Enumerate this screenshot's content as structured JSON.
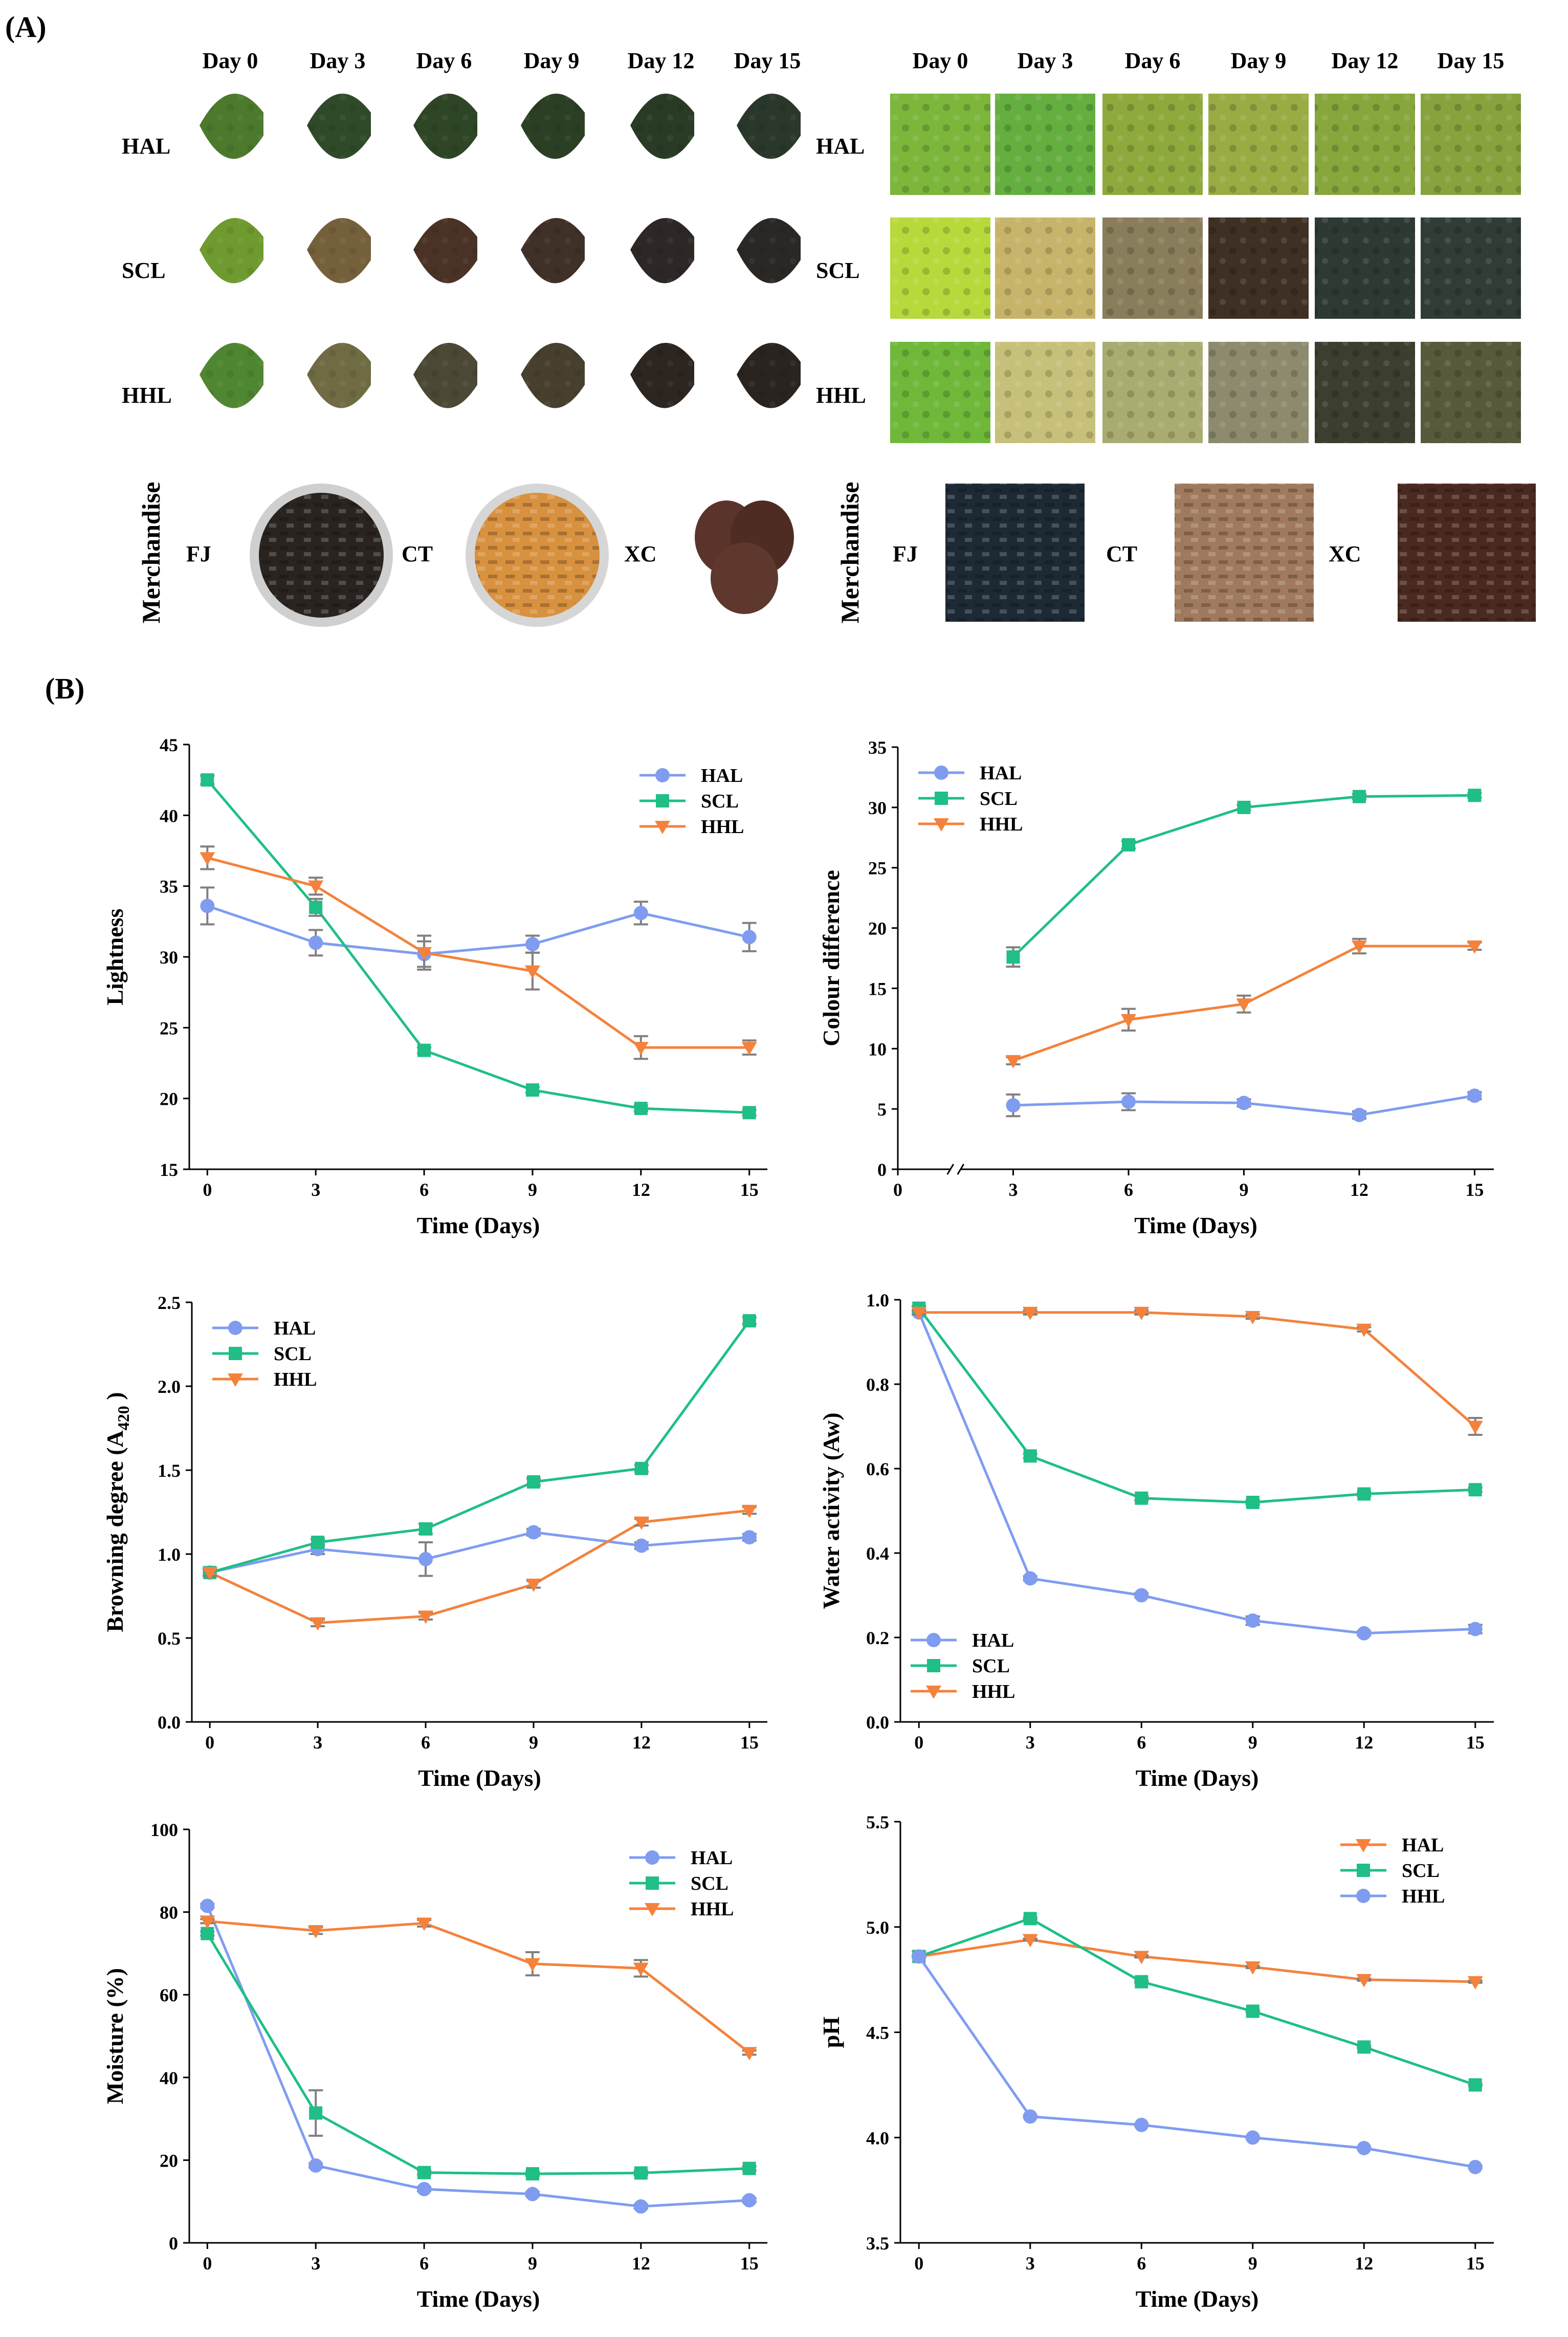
{
  "panel_a": {
    "label": "(A)",
    "days": [
      "Day 0",
      "Day 3",
      "Day 6",
      "Day 9",
      "Day 12",
      "Day 15"
    ],
    "rows": [
      "HAL",
      "SCL",
      "HHL"
    ],
    "merch_title": "Merchandise",
    "merch": [
      "FJ",
      "CT",
      "XC"
    ],
    "colors": {
      "HAL": [
        "#4b7a2c",
        "#2f4a29",
        "#2e4526",
        "#2b3f25",
        "#2a3b25",
        "#29382b"
      ],
      "SCL": [
        "#6f9a2f",
        "#75603c",
        "#4a3326",
        "#3f3028",
        "#2d2826",
        "#2b2724"
      ],
      "HHL": [
        "#4f8632",
        "#6f6b43",
        "#4c4836",
        "#48402e",
        "#2c2520",
        "#2a2420"
      ],
      "HAL_surface": [
        "#7cb63b",
        "#65ae40",
        "#8ea93c",
        "#99ac44",
        "#87a63c",
        "#86a33d"
      ],
      "SCL_surface": [
        "#b7d93b",
        "#c7b46a",
        "#8a7d5b",
        "#3e3022",
        "#2c3a32",
        "#2f3d36"
      ],
      "HHL_surface": [
        "#6fb83a",
        "#c7c07a",
        "#a9ac70",
        "#8d8a6e",
        "#3c3e30",
        "#585a3c"
      ],
      "merch": [
        "#1d2a35",
        "#a07a5e",
        "#4a2a20"
      ]
    }
  },
  "panel_b": {
    "label": "(B)"
  },
  "chart_data": [
    {
      "type": "line",
      "ylabel": "Lightness",
      "xlabel": "Time (Days)",
      "x": [
        0,
        3,
        6,
        9,
        12,
        15
      ],
      "xlim": [
        -0.5,
        15.5
      ],
      "ylim": [
        15,
        45
      ],
      "yticks": [
        15,
        20,
        25,
        30,
        35,
        40,
        45
      ],
      "xticks": [
        "0",
        "3",
        "6",
        "9",
        "12",
        "15"
      ],
      "legend_position": "top-right",
      "series": [
        {
          "name": "HAL",
          "marker": "circle",
          "color": "#7f9cf0",
          "values": [
            33.6,
            31.0,
            30.2,
            30.9,
            33.1,
            31.4
          ],
          "errors": [
            1.3,
            0.9,
            0.9,
            0.6,
            0.8,
            1.0
          ]
        },
        {
          "name": "SCL",
          "marker": "square",
          "color": "#1fbf86",
          "values": [
            42.5,
            33.5,
            23.4,
            20.6,
            19.3,
            19.0
          ],
          "errors": [
            0.3,
            0.6,
            0.2,
            0.2,
            0.2,
            0.2
          ]
        },
        {
          "name": "HHL",
          "marker": "triangle",
          "color": "#f4823c",
          "values": [
            37.0,
            35.0,
            30.3,
            29.0,
            23.6,
            23.6
          ],
          "errors": [
            0.8,
            0.6,
            1.2,
            1.3,
            0.8,
            0.5
          ]
        }
      ]
    },
    {
      "type": "line",
      "ylabel": "Colour difference",
      "xlabel": "Time (Days)",
      "x": [
        3,
        6,
        9,
        12,
        15
      ],
      "xlim": [
        0,
        15.5
      ],
      "ylim": [
        0,
        35
      ],
      "yticks": [
        0,
        5,
        10,
        15,
        20,
        25,
        30,
        35
      ],
      "xticks": [
        "0",
        "3",
        "6",
        "9",
        "12",
        "15"
      ],
      "axis_break": true,
      "legend_position": "top-left",
      "series": [
        {
          "name": "HAL",
          "marker": "circle",
          "color": "#7f9cf0",
          "values": [
            5.3,
            5.6,
            5.5,
            4.5,
            6.1
          ],
          "errors": [
            0.9,
            0.7,
            0.3,
            0.3,
            0.3
          ]
        },
        {
          "name": "SCL",
          "marker": "square",
          "color": "#1fbf86",
          "values": [
            17.6,
            26.9,
            30.0,
            30.9,
            31.0
          ],
          "errors": [
            0.8,
            0.3,
            0.2,
            0.2,
            0.2
          ]
        },
        {
          "name": "HHL",
          "marker": "triangle",
          "color": "#f4823c",
          "values": [
            9.0,
            12.4,
            13.7,
            18.5,
            18.5
          ],
          "errors": [
            0.3,
            0.9,
            0.7,
            0.6,
            0.3
          ]
        }
      ]
    },
    {
      "type": "line",
      "ylabel": "Browning degree (A420 )",
      "ylabel_main": "Browning degree (A",
      "ylabel_sub": "420",
      "ylabel_end": " )",
      "xlabel": "Time (Days)",
      "x": [
        0,
        3,
        6,
        9,
        12,
        15
      ],
      "xlim": [
        -0.5,
        15.5
      ],
      "ylim": [
        0,
        2.5
      ],
      "yticks": [
        0.0,
        0.5,
        1.0,
        1.5,
        2.0,
        2.5
      ],
      "xticks": [
        "0",
        "3",
        "6",
        "9",
        "12",
        "15"
      ],
      "legend_position": "top-left",
      "series": [
        {
          "name": "HAL",
          "marker": "circle",
          "color": "#7f9cf0",
          "values": [
            0.89,
            1.03,
            0.97,
            1.13,
            1.05,
            1.1
          ],
          "errors": [
            0.02,
            0.03,
            0.1,
            0.02,
            0.02,
            0.02
          ]
        },
        {
          "name": "SCL",
          "marker": "square",
          "color": "#1fbf86",
          "values": [
            0.89,
            1.07,
            1.15,
            1.43,
            1.51,
            2.39
          ],
          "errors": [
            0.02,
            0.02,
            0.03,
            0.02,
            0.02,
            0.02
          ]
        },
        {
          "name": "HHL",
          "marker": "triangle",
          "color": "#f4823c",
          "values": [
            0.89,
            0.59,
            0.63,
            0.82,
            1.19,
            1.26
          ],
          "errors": [
            0.02,
            0.02,
            0.02,
            0.02,
            0.02,
            0.02
          ]
        }
      ]
    },
    {
      "type": "line",
      "ylabel": "Water activity (Aw)",
      "xlabel": "Time (Days)",
      "x": [
        0,
        3,
        6,
        9,
        12,
        15
      ],
      "xlim": [
        -0.5,
        15.5
      ],
      "ylim": [
        0,
        1.0
      ],
      "yticks": [
        0.0,
        0.2,
        0.4,
        0.6,
        0.8,
        1.0
      ],
      "xticks": [
        "0",
        "3",
        "6",
        "9",
        "12",
        "15"
      ],
      "legend_position": "bottom-left",
      "series": [
        {
          "name": "HAL",
          "marker": "circle",
          "color": "#7f9cf0",
          "values": [
            0.97,
            0.34,
            0.3,
            0.24,
            0.21,
            0.22
          ],
          "errors": [
            0.005,
            0.005,
            0.005,
            0.01,
            0.005,
            0.01
          ]
        },
        {
          "name": "SCL",
          "marker": "square",
          "color": "#1fbf86",
          "values": [
            0.98,
            0.63,
            0.53,
            0.52,
            0.54,
            0.55
          ],
          "errors": [
            0.005,
            0.005,
            0.005,
            0.005,
            0.005,
            0.005
          ]
        },
        {
          "name": "HHL",
          "marker": "triangle",
          "color": "#f4823c",
          "values": [
            0.97,
            0.97,
            0.97,
            0.96,
            0.93,
            0.7
          ],
          "errors": [
            0.005,
            0.005,
            0.005,
            0.005,
            0.005,
            0.02
          ]
        }
      ]
    },
    {
      "type": "line",
      "ylabel": "Moisture (%)",
      "xlabel": "Time (Days)",
      "x": [
        0,
        3,
        6,
        9,
        12,
        15
      ],
      "xlim": [
        -0.5,
        15.5
      ],
      "ylim": [
        0,
        100
      ],
      "yticks": [
        0,
        20,
        40,
        60,
        80,
        100
      ],
      "xticks": [
        "0",
        "3",
        "6",
        "9",
        "12",
        "15"
      ],
      "legend_position": "top-right",
      "series": [
        {
          "name": "HAL",
          "marker": "circle",
          "color": "#7f9cf0",
          "values": [
            81.5,
            18.7,
            13.0,
            11.8,
            8.8,
            10.3
          ],
          "errors": [
            0.5,
            0.5,
            0.5,
            0.5,
            0.5,
            0.5
          ]
        },
        {
          "name": "SCL",
          "marker": "square",
          "color": "#1fbf86",
          "values": [
            74.8,
            31.4,
            17.0,
            16.7,
            16.9,
            18.0
          ],
          "errors": [
            0.5,
            5.5,
            0.5,
            0.5,
            0.5,
            0.5
          ]
        },
        {
          "name": "HHL",
          "marker": "triangle",
          "color": "#f4823c",
          "values": [
            77.8,
            75.5,
            77.3,
            67.5,
            66.4,
            46.0
          ],
          "errors": [
            0.5,
            0.8,
            0.8,
            2.8,
            2.0,
            0.5
          ]
        }
      ]
    },
    {
      "type": "line",
      "ylabel": "pH",
      "xlabel": "Time (Days)",
      "x": [
        0,
        3,
        6,
        9,
        12,
        15
      ],
      "xlim": [
        -0.5,
        15.5
      ],
      "ylim": [
        3.5,
        5.5
      ],
      "yticks": [
        3.5,
        4.0,
        4.5,
        5.0,
        5.5
      ],
      "xticks": [
        "0",
        "3",
        "6",
        "9",
        "12",
        "15"
      ],
      "legend_position": "top-right",
      "series": [
        {
          "name": "HAL",
          "marker": "triangle",
          "color": "#f4823c",
          "values": [
            4.86,
            4.94,
            4.86,
            4.81,
            4.75,
            4.74
          ],
          "errors": [
            0.005,
            0.005,
            0.005,
            0.005,
            0.005,
            0.005
          ]
        },
        {
          "name": "SCL",
          "marker": "square",
          "color": "#1fbf86",
          "values": [
            4.86,
            5.04,
            4.74,
            4.6,
            4.43,
            4.25
          ],
          "errors": [
            0.005,
            0.005,
            0.005,
            0.005,
            0.005,
            0.005
          ]
        },
        {
          "name": "HHL",
          "marker": "circle",
          "color": "#7f9cf0",
          "values": [
            4.86,
            4.1,
            4.06,
            4.0,
            3.95,
            3.86
          ],
          "errors": [
            0.005,
            0.005,
            0.005,
            0.005,
            0.005,
            0.005
          ]
        }
      ]
    }
  ]
}
